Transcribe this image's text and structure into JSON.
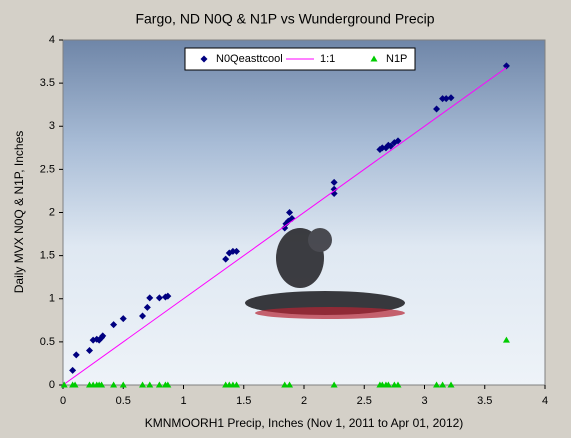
{
  "chart_data": {
    "type": "scatter",
    "title": "Fargo, ND N0Q & N1P  vs Wunderground Precip",
    "x_label": "KMNMOORH1 Precip, Inches (Nov 1, 2011 to Apr 01, 2012)",
    "y_label": "Daily MVX N0Q & N1P, Inches",
    "xlim": [
      0,
      4
    ],
    "ylim": [
      0,
      4
    ],
    "xticks": [
      0,
      0.5,
      1,
      1.5,
      2,
      2.5,
      3,
      3.5,
      4
    ],
    "yticks": [
      0,
      0.5,
      1,
      1.5,
      2,
      2.5,
      3,
      3.5,
      4
    ],
    "legend": "top",
    "series": [
      {
        "name": "N0Qeasttcool",
        "color": "#000080",
        "marker": "diamond",
        "x": [
          0.08,
          0.11,
          0.22,
          0.25,
          0.28,
          0.3,
          0.32,
          0.33,
          0.42,
          0.5,
          0.66,
          0.7,
          0.72,
          0.8,
          0.85,
          0.87,
          1.35,
          1.38,
          1.41,
          1.44,
          1.84,
          1.85,
          1.87,
          1.88,
          1.9,
          2.25,
          2.25,
          2.25,
          2.63,
          2.65,
          2.68,
          2.7,
          2.72,
          2.75,
          2.78,
          3.1,
          3.15,
          3.18,
          3.22,
          3.68
        ],
        "y": [
          0.17,
          0.35,
          0.4,
          0.52,
          0.53,
          0.52,
          0.55,
          0.57,
          0.7,
          0.77,
          0.8,
          0.9,
          1.01,
          1.01,
          1.02,
          1.03,
          1.46,
          1.53,
          1.55,
          1.55,
          1.82,
          1.87,
          1.9,
          2.0,
          1.93,
          2.22,
          2.27,
          2.35,
          2.73,
          2.75,
          2.75,
          2.78,
          2.77,
          2.81,
          2.83,
          3.2,
          3.32,
          3.32,
          3.33,
          3.7
        ]
      },
      {
        "name": "1:1",
        "color": "#ff00ff",
        "marker": "line",
        "x": [
          0,
          3.68
        ],
        "y": [
          0,
          3.68
        ]
      },
      {
        "name": "N1P",
        "color": "#00cc00",
        "marker": "triangle",
        "x": [
          0.01,
          0.08,
          0.1,
          0.22,
          0.25,
          0.28,
          0.3,
          0.32,
          0.42,
          0.5,
          0.66,
          0.72,
          0.8,
          0.85,
          0.87,
          1.35,
          1.38,
          1.41,
          1.44,
          1.84,
          1.88,
          2.25,
          2.63,
          2.65,
          2.68,
          2.7,
          2.75,
          2.78,
          3.1,
          3.15,
          3.22,
          3.68
        ],
        "y": [
          0,
          0,
          0,
          0,
          0,
          0,
          0,
          0,
          0,
          0,
          0,
          0,
          0,
          0,
          0,
          0,
          0,
          0,
          0,
          0,
          0,
          0,
          0,
          0,
          0,
          0,
          0,
          0,
          0,
          0,
          0,
          0.52
        ]
      }
    ]
  }
}
